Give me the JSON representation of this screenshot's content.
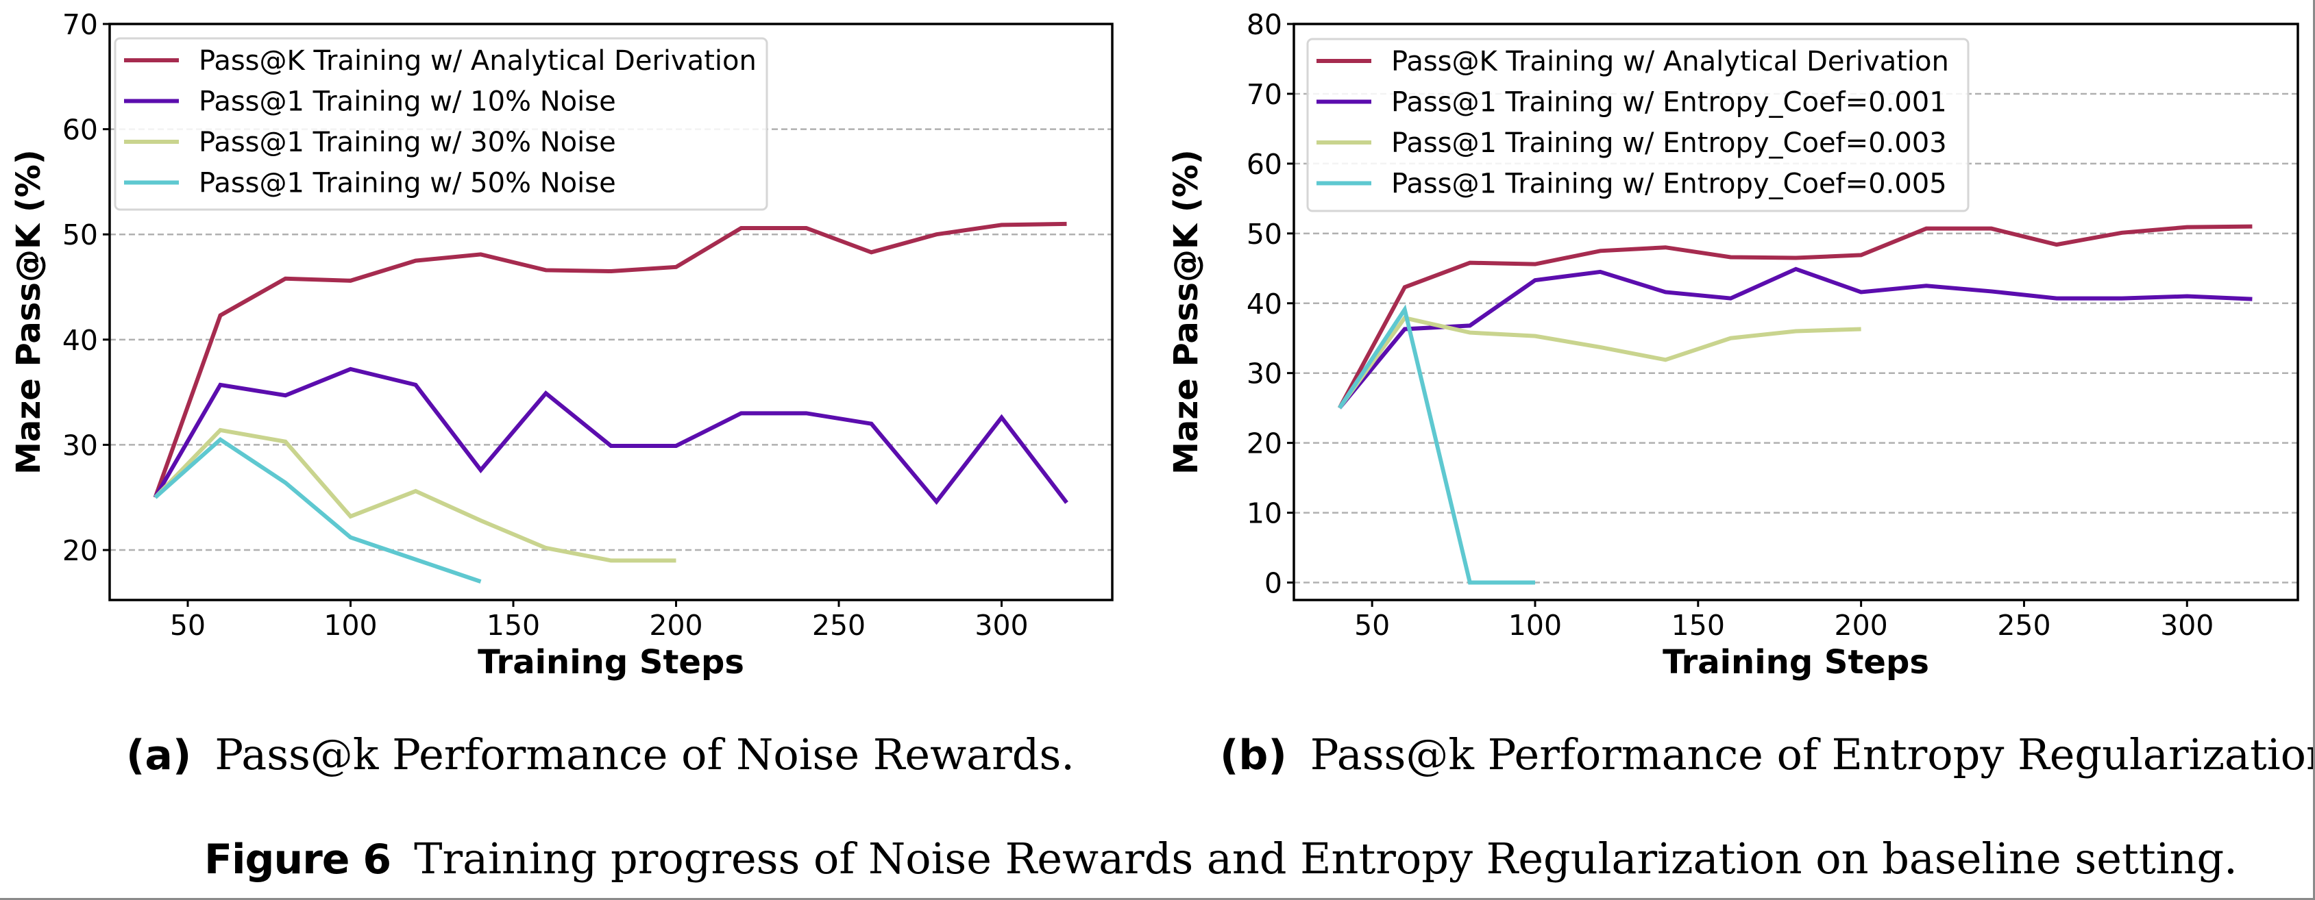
{
  "figure": {
    "label": "Figure 6",
    "caption": "Training progress of Noise Rewards and Entropy Regularization on baseline setting."
  },
  "subfigures": [
    {
      "label": "(a)",
      "caption": "Pass@k Performance of Noise Rewards."
    },
    {
      "label": "(b)",
      "caption": "Pass@k Performance of Entropy Regularization."
    }
  ],
  "chart_data": [
    {
      "type": "line",
      "title": "",
      "xlabel": "Training Steps",
      "ylabel": "Maze Pass@K (%)",
      "xlim": [
        26,
        334
      ],
      "ylim": [
        15.25,
        70
      ],
      "xticks": [
        50,
        100,
        150,
        200,
        250,
        300
      ],
      "yticks": [
        20,
        30,
        40,
        50,
        60,
        70
      ],
      "grid": "horizontal-dashed",
      "legend_position": "top-left",
      "x": [
        40,
        60,
        80,
        100,
        120,
        140,
        160,
        180,
        200,
        220,
        240,
        260,
        280,
        300,
        320
      ],
      "series": [
        {
          "name": "Pass@K Training w/ Analytical Derivation",
          "color": "#A62B4F",
          "values": [
            25.0,
            42.3,
            45.8,
            45.6,
            47.5,
            48.1,
            46.6,
            46.5,
            46.9,
            50.6,
            50.6,
            48.3,
            50.0,
            50.9,
            51.0
          ]
        },
        {
          "name": "Pass@1 Training w/ 10% Noise",
          "color": "#5B0DAE",
          "values": [
            25.0,
            35.7,
            34.7,
            37.2,
            35.7,
            27.6,
            34.9,
            29.9,
            29.9,
            33.0,
            33.0,
            32.0,
            24.6,
            32.6,
            24.5
          ]
        },
        {
          "name": "Pass@1 Training w/ 30% Noise",
          "color": "#C9D48E",
          "values": [
            25.0,
            31.4,
            30.3,
            23.2,
            25.6,
            22.8,
            20.2,
            19.0,
            19.0,
            null,
            null,
            null,
            null,
            null,
            null
          ]
        },
        {
          "name": "Pass@1 Training w/ 50% Noise",
          "color": "#5EC8D0",
          "values": [
            25.0,
            30.5,
            26.4,
            21.2,
            19.1,
            17.0,
            null,
            null,
            null,
            null,
            null,
            null,
            null,
            null,
            null
          ]
        }
      ]
    },
    {
      "type": "line",
      "title": "",
      "xlabel": "Training Steps",
      "ylabel": "Maze Pass@K (%)",
      "xlim": [
        26,
        334
      ],
      "ylim": [
        -2.5,
        80
      ],
      "xticks": [
        50,
        100,
        150,
        200,
        250,
        300
      ],
      "yticks": [
        0,
        10,
        20,
        30,
        40,
        50,
        60,
        70,
        80
      ],
      "grid": "horizontal-dashed",
      "legend_position": "top-left",
      "x": [
        40,
        60,
        80,
        100,
        120,
        140,
        160,
        180,
        200,
        220,
        240,
        260,
        280,
        300,
        320
      ],
      "series": [
        {
          "name": "Pass@K Training w/ Analytical Derivation",
          "color": "#A62B4F",
          "values": [
            25.0,
            42.3,
            45.8,
            45.6,
            47.5,
            48.0,
            46.6,
            46.5,
            46.9,
            50.7,
            50.7,
            48.4,
            50.1,
            50.9,
            51.0
          ]
        },
        {
          "name": "Pass@1 Training w/ Entropy_Coef=0.001",
          "color": "#5B0DAE",
          "values": [
            25.0,
            36.3,
            36.8,
            43.3,
            44.5,
            41.6,
            40.7,
            44.9,
            41.6,
            42.5,
            41.7,
            40.7,
            40.7,
            41.0,
            40.6
          ]
        },
        {
          "name": "Pass@1 Training w/ Entropy_Coef=0.003",
          "color": "#C9D48E",
          "values": [
            25.0,
            37.9,
            35.8,
            35.3,
            33.7,
            31.9,
            35.0,
            36.0,
            36.3,
            null,
            null,
            null,
            null,
            null,
            null
          ]
        },
        {
          "name": "Pass@1 Training w/ Entropy_Coef=0.005",
          "color": "#5EC8D0",
          "values": [
            25.0,
            39.1,
            0.0,
            0.0,
            null,
            null,
            null,
            null,
            null,
            null,
            null,
            null,
            null,
            null,
            null
          ]
        }
      ]
    }
  ]
}
